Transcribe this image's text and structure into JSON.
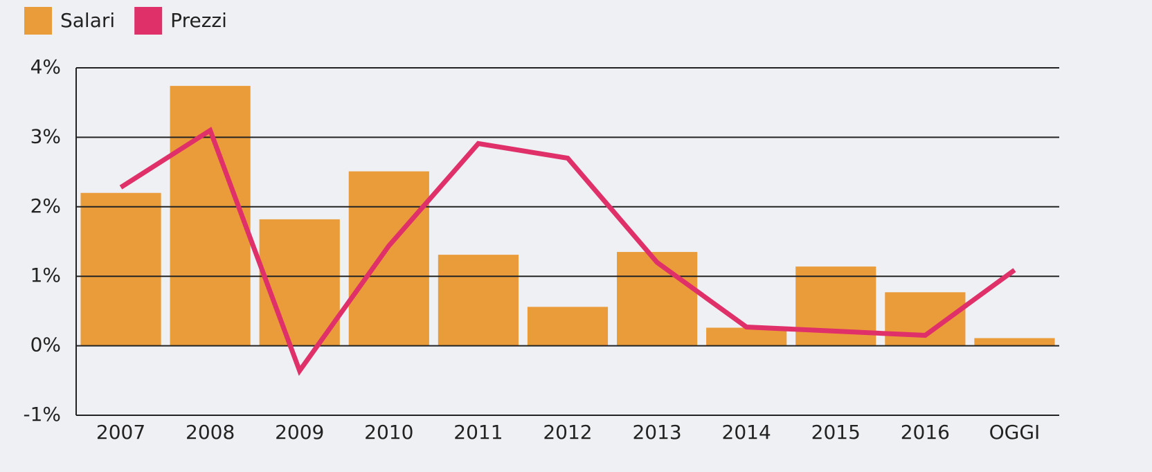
{
  "chart_data": {
    "type": "bar-line",
    "categories": [
      "2007",
      "2008",
      "2009",
      "2010",
      "2011",
      "2012",
      "2013",
      "2014",
      "2015",
      "2016",
      "OGGI"
    ],
    "series": [
      {
        "name": "Salari",
        "type": "bar",
        "color": "#eb9c3a",
        "values": [
          2.2,
          3.74,
          1.82,
          2.51,
          1.31,
          0.56,
          1.35,
          0.26,
          1.14,
          0.77,
          0.11
        ]
      },
      {
        "name": "Prezzi",
        "type": "line",
        "color": "#e0306a",
        "values": [
          2.28,
          3.1,
          -0.36,
          1.44,
          2.91,
          2.7,
          1.2,
          0.27,
          0.21,
          0.15,
          1.09
        ]
      }
    ],
    "ylim": [
      -1,
      4
    ],
    "yticks": [
      {
        "value": -1,
        "label": "-1%"
      },
      {
        "value": 0,
        "label": "0%"
      },
      {
        "value": 1,
        "label": "1%"
      },
      {
        "value": 2,
        "label": "2%"
      },
      {
        "value": 3,
        "label": "3%"
      },
      {
        "value": 4,
        "label": "4%"
      }
    ],
    "grid": true,
    "legend": "top-left"
  }
}
